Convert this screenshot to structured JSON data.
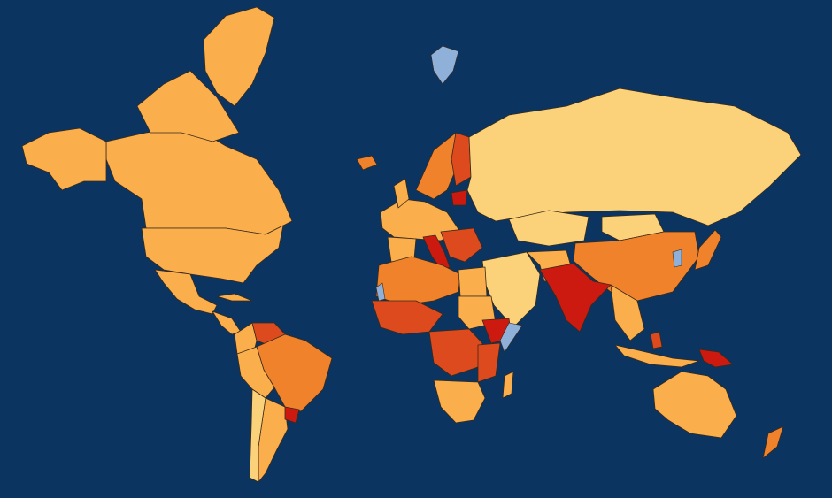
{
  "map": {
    "projection": "mercator",
    "ocean_color": "#0b3560",
    "border_color": "#3a2a1a",
    "palette": {
      "level_1": "#fbd27a",
      "level_2": "#fbae4c",
      "level_3": "#f0822c",
      "level_4": "#dd4a1e",
      "level_5": "#cc1a10",
      "no_data": "#8fb0d8"
    },
    "regions": [
      {
        "name": "canada",
        "level": "level_2"
      },
      {
        "name": "greenland",
        "level": "level_2"
      },
      {
        "name": "alaska",
        "level": "level_2"
      },
      {
        "name": "united-states",
        "level": "level_2"
      },
      {
        "name": "mexico",
        "level": "level_2"
      },
      {
        "name": "central-america",
        "level": "level_2"
      },
      {
        "name": "cuba",
        "level": "level_2"
      },
      {
        "name": "venezuela",
        "level": "level_4"
      },
      {
        "name": "colombia",
        "level": "level_2"
      },
      {
        "name": "brazil",
        "level": "level_3"
      },
      {
        "name": "peru-bolivia",
        "level": "level_2"
      },
      {
        "name": "argentina",
        "level": "level_2"
      },
      {
        "name": "chile",
        "level": "level_1"
      },
      {
        "name": "uruguay",
        "level": "level_5"
      },
      {
        "name": "iceland",
        "level": "level_3"
      },
      {
        "name": "svalbard",
        "level": "no_data"
      },
      {
        "name": "western-europe",
        "level": "level_2"
      },
      {
        "name": "scandinavia",
        "level": "level_3"
      },
      {
        "name": "finland",
        "level": "level_4"
      },
      {
        "name": "baltics",
        "level": "level_5"
      },
      {
        "name": "italy",
        "level": "level_5"
      },
      {
        "name": "balkans",
        "level": "level_4"
      },
      {
        "name": "russia",
        "level": "level_1"
      },
      {
        "name": "kazakhstan",
        "level": "level_1"
      },
      {
        "name": "china",
        "level": "level_3"
      },
      {
        "name": "mongolia",
        "level": "level_1"
      },
      {
        "name": "india",
        "level": "level_5"
      },
      {
        "name": "middle-east",
        "level": "level_1"
      },
      {
        "name": "iran",
        "level": "level_2"
      },
      {
        "name": "southeast-asia",
        "level": "level_2"
      },
      {
        "name": "japan",
        "level": "level_3"
      },
      {
        "name": "korea",
        "level": "no_data"
      },
      {
        "name": "indonesia",
        "level": "level_2"
      },
      {
        "name": "philippines",
        "level": "level_4"
      },
      {
        "name": "papua-new-guinea",
        "level": "level_5"
      },
      {
        "name": "australia",
        "level": "level_2"
      },
      {
        "name": "new-zealand",
        "level": "level_3"
      },
      {
        "name": "north-africa",
        "level": "level_3"
      },
      {
        "name": "west-africa",
        "level": "level_4"
      },
      {
        "name": "egypt",
        "level": "level_2"
      },
      {
        "name": "sudan",
        "level": "level_2"
      },
      {
        "name": "ethiopia",
        "level": "level_5"
      },
      {
        "name": "somalia",
        "level": "no_data"
      },
      {
        "name": "central-africa",
        "level": "level_4"
      },
      {
        "name": "east-africa",
        "level": "level_4"
      },
      {
        "name": "southern-africa",
        "level": "level_2"
      },
      {
        "name": "madagascar",
        "level": "level_2"
      },
      {
        "name": "western-sahara",
        "level": "no_data"
      }
    ]
  }
}
